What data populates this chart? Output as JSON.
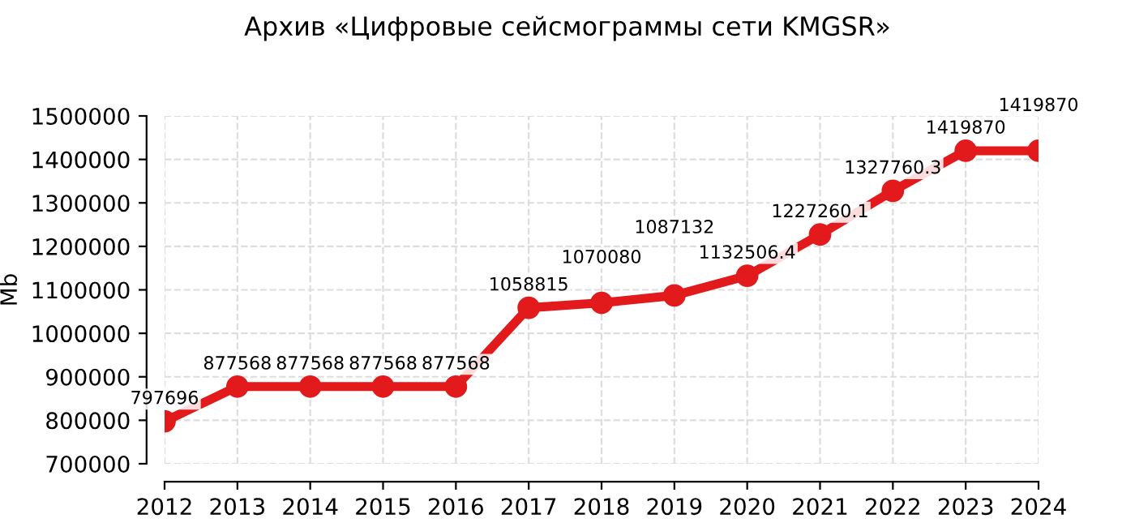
{
  "chart_data": {
    "type": "line",
    "title": "Архив «Цифровые сейсмограммы сети KMGSR»",
    "ylabel": "Mb",
    "x": [
      2012,
      2013,
      2014,
      2015,
      2016,
      2017,
      2018,
      2019,
      2020,
      2021,
      2022,
      2023,
      2024
    ],
    "xlim": [
      2012,
      2024
    ],
    "xticks": [
      2012,
      2013,
      2014,
      2015,
      2016,
      2017,
      2018,
      2019,
      2020,
      2021,
      2022,
      2023,
      2024
    ],
    "ylim": [
      700000,
      1500000
    ],
    "yticks": [
      700000,
      800000,
      900000,
      1000000,
      1100000,
      1200000,
      1300000,
      1400000,
      1500000
    ],
    "series": [
      {
        "color": "#e31a1c",
        "values": [
          797696,
          877568,
          877568,
          877568,
          877568,
          1058815,
          1070080,
          1087132,
          1132506.4,
          1227260.1,
          1327760.3,
          1419870,
          1419870
        ],
        "value_labels": [
          "797696",
          "877568",
          "877568",
          "877568",
          "877568",
          "1058815",
          "1070080",
          "1087132",
          "1132506.4",
          "1227260.1",
          "1327760.3",
          "1419870",
          "1419870"
        ]
      }
    ],
    "marker": "circle",
    "line_style": "solid",
    "grid": true,
    "legend": false
  }
}
